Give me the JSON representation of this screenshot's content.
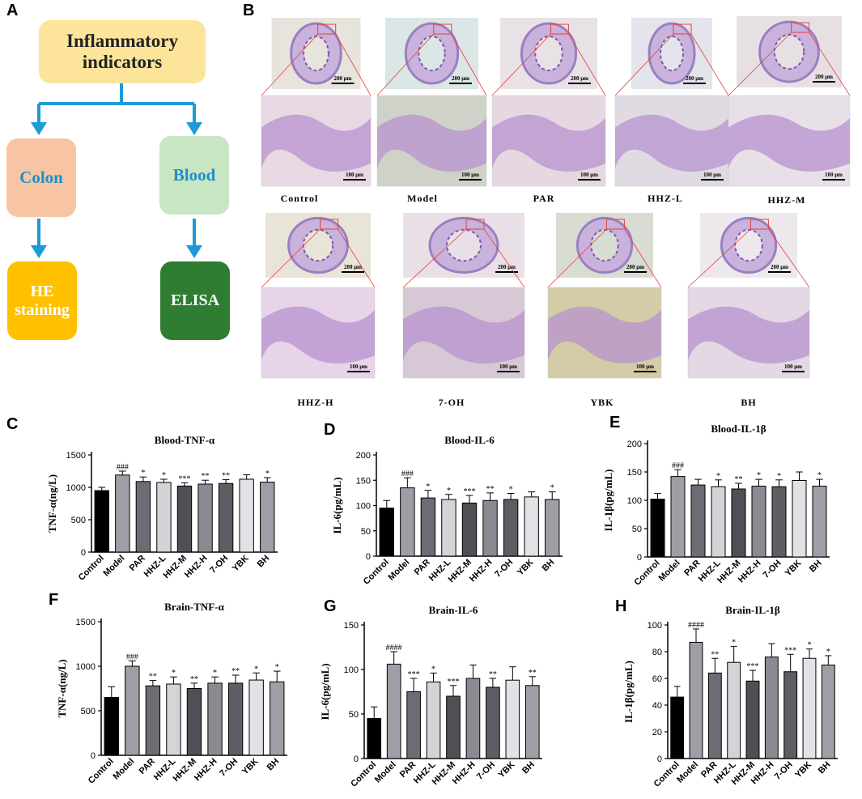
{
  "panel_labels": {
    "a": "A",
    "b": "B",
    "c": "C",
    "d": "D",
    "e": "E",
    "f": "F",
    "g": "G",
    "h": "H"
  },
  "flow": {
    "top": "Inflammatory indicators",
    "left": "Colon",
    "right": "Blood",
    "left_bottom": "HE staining",
    "right_bottom": "ELISA",
    "colors": {
      "top": "#fce59a",
      "left": "#f8c5a4",
      "right": "#c8e6c4",
      "left_bottom": "#ffc000",
      "right_bottom": "#2e7d32",
      "arrow": "#1e9ad6",
      "left_text": "#1e8fc9",
      "right_text": "#1e8fc9",
      "white_text": "#ffffff"
    }
  },
  "histology": {
    "scale_top": "200 μm",
    "scale_bottom": "100 μm",
    "groups": [
      {
        "label": "Control"
      },
      {
        "label": "Model"
      },
      {
        "label": "PAR"
      },
      {
        "label": "HHZ-L"
      },
      {
        "label": "HHZ-M"
      },
      {
        "label": "HHZ-H"
      },
      {
        "label": "7-OH"
      },
      {
        "label": "YBK"
      },
      {
        "label": "BH"
      }
    ]
  },
  "chart_data": [
    {
      "panel": "C",
      "type": "bar",
      "title": "Blood-TNF-α",
      "ylabel": "TNF-α(ng/L)",
      "categories": [
        "Control",
        "Model",
        "PAR",
        "HHZ-L",
        "HHZ-M",
        "HHZ-H",
        "7-OH",
        "YBK",
        "BH"
      ],
      "values": [
        950,
        1190,
        1090,
        1075,
        1020,
        1050,
        1060,
        1125,
        1080
      ],
      "errors": [
        50,
        60,
        70,
        50,
        50,
        60,
        60,
        70,
        70
      ],
      "annotations": [
        "",
        "###",
        "*",
        "*",
        "***",
        "**",
        "**",
        "",
        "*"
      ],
      "ylim": [
        0,
        1500
      ],
      "yticks": [
        0,
        500,
        1000,
        1500
      ]
    },
    {
      "panel": "D",
      "type": "bar",
      "title": "Blood-IL-6",
      "ylabel": "IL-6(pg/mL)",
      "categories": [
        "Control",
        "Model",
        "PAR",
        "HHZ-L",
        "HHZ-M",
        "HHZ-H",
        "7-OH",
        "YBK",
        "BH"
      ],
      "values": [
        95,
        135,
        115,
        112,
        105,
        110,
        112,
        117,
        112
      ],
      "errors": [
        15,
        20,
        15,
        10,
        15,
        15,
        12,
        10,
        15
      ],
      "annotations": [
        "",
        "###",
        "*",
        "*",
        "***",
        "**",
        "*",
        "",
        "*"
      ],
      "ylim": [
        0,
        200
      ],
      "yticks": [
        0,
        50,
        100,
        150,
        200
      ]
    },
    {
      "panel": "E",
      "type": "bar",
      "title": "Blood-IL-1β",
      "ylabel": "IL-1β(pg/mL)",
      "categories": [
        "Control",
        "Model",
        "PAR",
        "HHZ-L",
        "HHZ-M",
        "HHZ-H",
        "7-OH",
        "YBK",
        "BH"
      ],
      "values": [
        102,
        142,
        127,
        124,
        120,
        125,
        124,
        135,
        125
      ],
      "errors": [
        10,
        12,
        10,
        12,
        10,
        12,
        12,
        15,
        12
      ],
      "annotations": [
        "",
        "###",
        "",
        "*",
        "**",
        "*",
        "*",
        "",
        "*"
      ],
      "ylim": [
        0,
        200
      ],
      "yticks": [
        0,
        50,
        100,
        150,
        200
      ]
    },
    {
      "panel": "F",
      "type": "bar",
      "title": "Brain-TNF-α",
      "ylabel": "TNF-α(ng/L)",
      "categories": [
        "Control",
        "Model",
        "PAR",
        "HHZ-L",
        "HHZ-M",
        "HHZ-H",
        "7-OH",
        "YBK",
        "BH"
      ],
      "values": [
        650,
        1000,
        780,
        800,
        750,
        810,
        810,
        845,
        825
      ],
      "errors": [
        120,
        60,
        60,
        80,
        60,
        70,
        90,
        80,
        120
      ],
      "annotations": [
        "",
        "###",
        "**",
        "*",
        "**",
        "*",
        "**",
        "*",
        "*"
      ],
      "ylim": [
        0,
        1500
      ],
      "yticks": [
        0,
        500,
        1000,
        1500
      ]
    },
    {
      "panel": "G",
      "type": "bar",
      "title": "Brain-IL-6",
      "ylabel": "IL-6(pg/mL)",
      "categories": [
        "Control",
        "Model",
        "PAR",
        "HHZ-L",
        "HHZ-M",
        "HHZ-H",
        "7-OH",
        "YBK",
        "BH"
      ],
      "values": [
        45,
        106,
        75,
        86,
        70,
        90,
        80,
        88,
        82
      ],
      "errors": [
        13,
        14,
        15,
        10,
        12,
        15,
        10,
        15,
        10
      ],
      "annotations": [
        "",
        "####",
        "***",
        "*",
        "***",
        "",
        "**",
        "",
        "**"
      ],
      "ylim": [
        0,
        150
      ],
      "yticks": [
        0,
        50,
        100,
        150
      ]
    },
    {
      "panel": "H",
      "type": "bar",
      "title": "Brain-IL-1β",
      "ylabel": "IL-1β(pg/mL)",
      "categories": [
        "Control",
        "Model",
        "PAR",
        "HHZ-L",
        "HHZ-M",
        "HHZ-H",
        "7-OH",
        "YBK",
        "BH"
      ],
      "values": [
        46,
        87,
        64,
        72,
        58,
        76,
        65,
        75,
        70
      ],
      "errors": [
        8,
        10,
        11,
        12,
        8,
        10,
        13,
        7,
        7
      ],
      "annotations": [
        "",
        "####",
        "**",
        "*",
        "***",
        "",
        "***",
        "*",
        "*"
      ],
      "ylim": [
        0,
        100
      ],
      "yticks": [
        0,
        20,
        40,
        60,
        80,
        100
      ]
    }
  ],
  "bar_colors": [
    "#000000",
    "#9e9ea6",
    "#6c6c74",
    "#d3d3d8",
    "#4f4f55",
    "#8a8a92",
    "#5d5d63",
    "#e2e2e6",
    "#9e9ea6"
  ]
}
